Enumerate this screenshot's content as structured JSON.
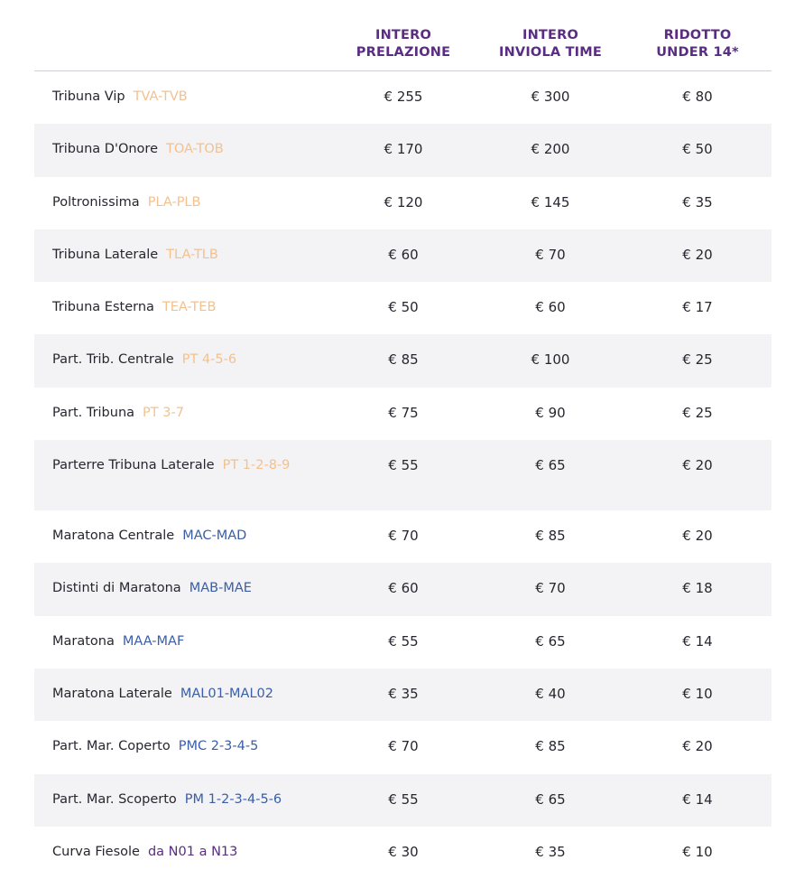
{
  "headers": {
    "intero_prelazione": "INTERO\nPRELAZIONE",
    "intero_inviola": "INTERO\nINVIOLA TIME",
    "ridotto": "RIDOTTO\nUNDER 14*"
  },
  "colors": {
    "header_purple": "#5a2d82",
    "code_orange": "#f3c18f",
    "code_blue": "#3a5ea8",
    "row_stripe": "#f3f3f5"
  },
  "rows": [
    {
      "name": "Tribuna Vip",
      "code": "TVA-TVB",
      "code_color": "orange",
      "prelazione": "€ 255",
      "inviola": "€ 300",
      "ridotto": "€ 80"
    },
    {
      "name": "Tribuna D'Onore",
      "code": "TOA-TOB",
      "code_color": "orange",
      "prelazione": "€ 170",
      "inviola": "€ 200",
      "ridotto": "€ 50"
    },
    {
      "name": "Poltronissima",
      "code": "PLA-PLB",
      "code_color": "orange",
      "prelazione": "€ 120",
      "inviola": "€ 145",
      "ridotto": "€ 35"
    },
    {
      "name": "Tribuna Laterale",
      "code": "TLA-TLB",
      "code_color": "orange",
      "prelazione": "€ 60",
      "inviola": "€ 70",
      "ridotto": "€ 20"
    },
    {
      "name": "Tribuna Esterna",
      "code": "TEA-TEB",
      "code_color": "orange",
      "prelazione": "€ 50",
      "inviola": "€ 60",
      "ridotto": "€ 17"
    },
    {
      "name": "Part. Trib. Centrale",
      "code": "PT 4-5-6",
      "code_color": "orange",
      "prelazione": "€ 85",
      "inviola": "€ 100",
      "ridotto": "€ 25"
    },
    {
      "name": "Part. Tribuna",
      "code": "PT 3-7",
      "code_color": "orange",
      "prelazione": "€ 75",
      "inviola": "€ 90",
      "ridotto": "€ 25"
    },
    {
      "name": "Parterre Tribuna Laterale",
      "code": "PT 1-2-8-9",
      "code_color": "orange",
      "prelazione": "€ 55",
      "inviola": "€ 65",
      "ridotto": "€ 20"
    },
    {
      "name": "Maratona Centrale",
      "code": "MAC-MAD",
      "code_color": "blue",
      "prelazione": "€ 70",
      "inviola": "€ 85",
      "ridotto": "€ 20"
    },
    {
      "name": "Distinti di Maratona",
      "code": "MAB-MAE",
      "code_color": "blue",
      "prelazione": "€ 60",
      "inviola": "€ 70",
      "ridotto": "€ 18"
    },
    {
      "name": "Maratona",
      "code": "MAA-MAF",
      "code_color": "blue",
      "prelazione": "€ 55",
      "inviola": "€ 65",
      "ridotto": "€ 14"
    },
    {
      "name": "Maratona Laterale",
      "code": "MAL01-MAL02",
      "code_color": "blue",
      "prelazione": "€ 35",
      "inviola": "€ 40",
      "ridotto": "€ 10"
    },
    {
      "name": "Part. Mar. Coperto",
      "code": "PMC 2-3-4-5",
      "code_color": "blue",
      "prelazione": "€ 70",
      "inviola": "€ 85",
      "ridotto": "€ 20"
    },
    {
      "name": "Part. Mar. Scoperto",
      "code": "PM 1-2-3-4-5-6",
      "code_color": "blue",
      "prelazione": "€ 55",
      "inviola": "€ 65",
      "ridotto": "€ 14"
    },
    {
      "name": "Curva Fiesole",
      "code": "da N01 a N13",
      "code_color": "purple",
      "prelazione": "€ 30",
      "inviola": "€ 35",
      "ridotto": "€ 10"
    }
  ]
}
